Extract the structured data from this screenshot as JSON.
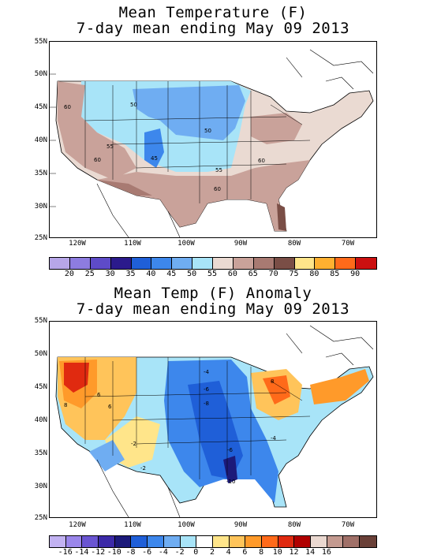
{
  "map1": {
    "title_line1": "Mean Temperature (F)",
    "title_line2": "7-day mean ending May 09 2013",
    "lat_labels": [
      "55N",
      "50N",
      "45N",
      "40N",
      "35N",
      "30N",
      "25N"
    ],
    "lon_labels": [
      "120W",
      "110W",
      "100W",
      "90W",
      "80W",
      "70W"
    ],
    "contour_labels": [
      "60",
      "50",
      "50",
      "55",
      "45",
      "60",
      "55",
      "60",
      "60"
    ],
    "colorbar": {
      "colors": [
        "#b7a6e8",
        "#8d7ce0",
        "#5e4bc8",
        "#2b1a8c",
        "#1f5fd8",
        "#3d87ec",
        "#6fadf2",
        "#a8e4f8",
        "#eadad2",
        "#c9a29a",
        "#a87a72",
        "#7a4e46",
        "#ffe58a",
        "#ffb030",
        "#ff6a1a",
        "#cc1010"
      ],
      "labels": [
        "20",
        "25",
        "30",
        "35",
        "40",
        "45",
        "50",
        "55",
        "60",
        "65",
        "70",
        "75",
        "80",
        "85",
        "90"
      ]
    }
  },
  "map2": {
    "title_line1": "Mean Temp (F) Anomaly",
    "title_line2": "7-day mean ending May 09 2013",
    "lat_labels": [
      "55N",
      "50N",
      "45N",
      "40N",
      "35N",
      "30N",
      "25N"
    ],
    "lon_labels": [
      "120W",
      "110W",
      "100W",
      "90W",
      "80W",
      "70W"
    ],
    "contour_labels": [
      "6",
      "8",
      "6",
      "-4",
      "-6",
      "-8",
      "8",
      "-2",
      "-2",
      "-6",
      "-10",
      "-4"
    ],
    "colorbar": {
      "colors": [
        "#c2b2f2",
        "#9a86ea",
        "#6a55d2",
        "#3c2aa8",
        "#1c1a7a",
        "#1f5fd8",
        "#3d87ec",
        "#6fadf2",
        "#a8e4f8",
        "#ffffff",
        "#ffe58a",
        "#ffc45a",
        "#ff9a2a",
        "#ff6a1a",
        "#e02a10",
        "#b00000",
        "#ead8d0",
        "#c49a90",
        "#a07068",
        "#6a4038"
      ],
      "labels": [
        "-16",
        "-14",
        "-12",
        "-10",
        "-8",
        "-6",
        "-4",
        "-2",
        "0",
        "2",
        "4",
        "6",
        "8",
        "10",
        "12",
        "14",
        "16"
      ]
    }
  }
}
